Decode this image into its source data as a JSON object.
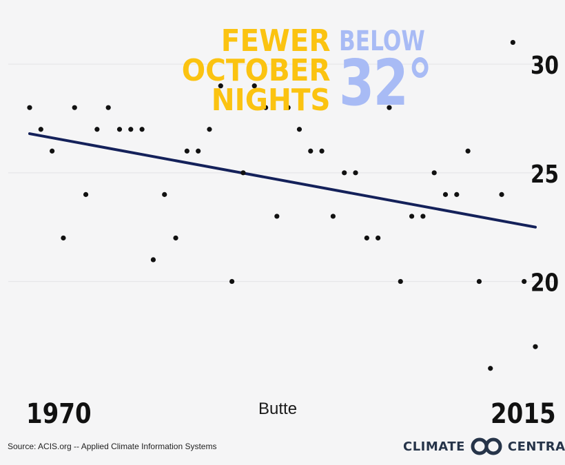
{
  "title": {
    "line1": "FEWER",
    "line2": "OCTOBER",
    "line3": "NIGHTS",
    "below": "BELOW",
    "temp": "32°"
  },
  "station": "Butte",
  "source": "Source: ACIS.org -- Applied Climate Information Systems",
  "brand": {
    "left": "CLIMATE",
    "right": "CENTRAL"
  },
  "colors": {
    "title_yellow": "#fbc311",
    "title_blue": "#a8bbf5",
    "trend_line": "#14215a",
    "points": "#111111",
    "background": "#f5f5f6"
  },
  "chart_data": {
    "type": "scatter",
    "title": "FEWER OCTOBER NIGHTS BELOW 32°",
    "xlabel": "",
    "ylabel": "",
    "xlim": [
      1970,
      2015
    ],
    "ylim": [
      15.2,
      32
    ],
    "x_tick_labels": [
      "1970",
      "2015"
    ],
    "y_ticks": [
      20,
      25,
      30
    ],
    "y_axis_side": "right",
    "grid": true,
    "series": [
      {
        "x": [
          1970,
          1971,
          1972,
          1973,
          1974,
          1975,
          1976,
          1977,
          1978,
          1979,
          1980,
          1981,
          1982,
          1983,
          1984,
          1985,
          1986,
          1987,
          1988,
          1989,
          1990,
          1991,
          1992,
          1993,
          1994,
          1995,
          1996,
          1997,
          1998,
          1999,
          2000,
          2001,
          2002,
          2003,
          2004,
          2005,
          2006,
          2007,
          2008,
          2009,
          2010,
          2011,
          2012,
          2013,
          2014,
          2015
        ],
        "y": [
          28,
          27,
          26,
          22,
          28,
          24,
          27,
          28,
          27,
          27,
          27,
          21,
          24,
          22,
          26,
          26,
          27,
          29,
          20,
          25,
          29,
          28,
          23,
          28,
          27,
          26,
          26,
          23,
          25,
          25,
          22,
          22,
          28,
          20,
          23,
          23,
          25,
          24,
          24,
          26,
          20,
          16,
          24,
          31,
          20,
          17
        ]
      }
    ],
    "trend": {
      "x": [
        1970,
        2015
      ],
      "y": [
        26.8,
        22.5
      ]
    }
  }
}
